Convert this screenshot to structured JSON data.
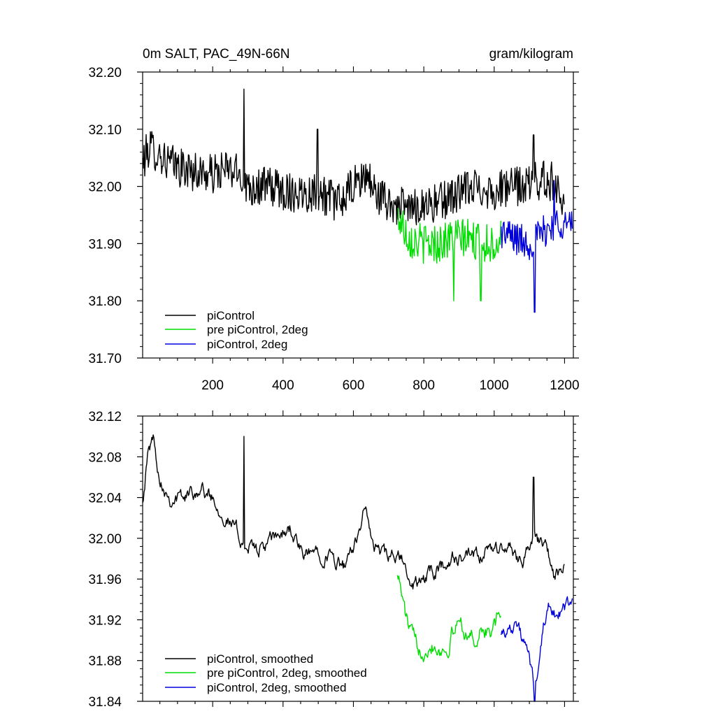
{
  "chart_data": [
    {
      "type": "line",
      "title": "0m SALT, PAC_49N-66N",
      "units": "gram/kilogram",
      "xlim": [
        1,
        1225
      ],
      "ylim": [
        31.7,
        32.2
      ],
      "xticks": [
        200,
        400,
        600,
        800,
        1000,
        1200
      ],
      "xtick_labels": [
        "200",
        "400",
        "600",
        "800",
        "1000",
        "1200"
      ],
      "yticks": [
        31.7,
        31.8,
        31.9,
        32.0,
        32.1,
        32.2
      ],
      "ytick_labels": [
        "31.70",
        "31.80",
        "31.90",
        "32.00",
        "32.10",
        "32.20"
      ],
      "legend_position": "bottom-left",
      "series": [
        {
          "name": "piControl",
          "color": "#000000",
          "x_start": 1,
          "x_end": 1200,
          "anchors": [
            [
              1,
              32.04
            ],
            [
              20,
              32.07
            ],
            [
              40,
              32.06
            ],
            [
              80,
              32.04
            ],
            [
              120,
              32.03
            ],
            [
              200,
              32.02
            ],
            [
              240,
              32.03
            ],
            [
              280,
              32.02
            ],
            [
              300,
              32.0
            ],
            [
              360,
              32.0
            ],
            [
              420,
              31.99
            ],
            [
              500,
              31.99
            ],
            [
              560,
              31.97
            ],
            [
              600,
              32.0
            ],
            [
              640,
              32.02
            ],
            [
              660,
              31.99
            ],
            [
              700,
              31.97
            ],
            [
              760,
              31.96
            ],
            [
              800,
              31.97
            ],
            [
              840,
              31.97
            ],
            [
              900,
              31.99
            ],
            [
              960,
              32.0
            ],
            [
              1000,
              31.99
            ],
            [
              1040,
              32.0
            ],
            [
              1080,
              32.0
            ],
            [
              1120,
              32.01
            ],
            [
              1160,
              32.01
            ],
            [
              1200,
              31.98
            ]
          ],
          "noise": 0.035,
          "spikes": [
            [
              289,
              32.17
            ],
            [
              498,
              32.1
            ],
            [
              1112,
              32.09
            ]
          ]
        },
        {
          "name": "pre piControl, 2deg",
          "color": "#00dd00",
          "x_start": 725,
          "x_end": 1020,
          "anchors": [
            [
              725,
              31.95
            ],
            [
              760,
              31.91
            ],
            [
              800,
              31.9
            ],
            [
              840,
              31.9
            ],
            [
              880,
              31.91
            ],
            [
              920,
              31.91
            ],
            [
              960,
              31.9
            ],
            [
              1000,
              31.9
            ],
            [
              1020,
              31.91
            ]
          ],
          "noise": 0.035,
          "spikes": [
            [
              885,
              31.8
            ],
            [
              962,
              31.8
            ]
          ]
        },
        {
          "name": "piControl, 2deg",
          "color": "#0000dd",
          "x_start": 1020,
          "x_end": 1222,
          "anchors": [
            [
              1020,
              31.92
            ],
            [
              1060,
              31.91
            ],
            [
              1100,
              31.9
            ],
            [
              1140,
              31.92
            ],
            [
              1180,
              31.94
            ],
            [
              1222,
              31.93
            ]
          ],
          "noise": 0.03,
          "spikes": [
            [
              1115,
              31.78
            ],
            [
              1170,
              32.01
            ]
          ]
        }
      ]
    },
    {
      "type": "line",
      "title": "",
      "xlim": [
        1,
        1225
      ],
      "ylim": [
        31.84,
        32.12
      ],
      "xticks": [
        200,
        400,
        600,
        800,
        1000,
        1200
      ],
      "xtick_labels": [],
      "yticks": [
        31.84,
        31.88,
        31.92,
        31.96,
        32.0,
        32.04,
        32.08,
        32.12
      ],
      "ytick_labels": [
        "31.84",
        "31.88",
        "31.92",
        "31.96",
        "32.00",
        "32.04",
        "32.08",
        "32.12"
      ],
      "legend_position": "bottom-left",
      "series": [
        {
          "name": "piControl, smoothed",
          "color": "#000000",
          "x_start": 1,
          "x_end": 1200,
          "anchors": [
            [
              1,
              32.04
            ],
            [
              15,
              32.08
            ],
            [
              30,
              32.1
            ],
            [
              50,
              32.06
            ],
            [
              80,
              32.04
            ],
            [
              120,
              32.04
            ],
            [
              160,
              32.05
            ],
            [
              200,
              32.04
            ],
            [
              240,
              32.02
            ],
            [
              280,
              32.0
            ],
            [
              300,
              31.99
            ],
            [
              340,
              31.99
            ],
            [
              380,
              32.0
            ],
            [
              420,
              32.01
            ],
            [
              460,
              31.98
            ],
            [
              500,
              31.99
            ],
            [
              540,
              31.98
            ],
            [
              580,
              31.97
            ],
            [
              600,
              31.99
            ],
            [
              630,
              32.03
            ],
            [
              660,
              31.99
            ],
            [
              700,
              31.98
            ],
            [
              740,
              31.98
            ],
            [
              760,
              31.95
            ],
            [
              800,
              31.96
            ],
            [
              840,
              31.97
            ],
            [
              880,
              31.98
            ],
            [
              920,
              31.98
            ],
            [
              960,
              31.98
            ],
            [
              1000,
              31.99
            ],
            [
              1040,
              31.99
            ],
            [
              1080,
              31.98
            ],
            [
              1110,
              32.0
            ],
            [
              1150,
              31.99
            ],
            [
              1170,
              31.96
            ],
            [
              1200,
              31.97
            ]
          ],
          "noise": 0.012,
          "spikes": [
            [
              289,
              32.1
            ],
            [
              1112,
              32.06
            ]
          ]
        },
        {
          "name": "pre piControl, 2deg, smoothed",
          "color": "#00dd00",
          "x_start": 725,
          "x_end": 1020,
          "anchors": [
            [
              725,
              31.97
            ],
            [
              750,
              31.92
            ],
            [
              780,
              31.89
            ],
            [
              820,
              31.9
            ],
            [
              860,
              31.89
            ],
            [
              900,
              31.92
            ],
            [
              940,
              31.9
            ],
            [
              970,
              31.91
            ],
            [
              1000,
              31.91
            ],
            [
              1020,
              31.93
            ]
          ],
          "noise": 0.015,
          "spikes": []
        },
        {
          "name": "piControl, 2deg, smoothed",
          "color": "#0000dd",
          "x_start": 1020,
          "x_end": 1222,
          "anchors": [
            [
              1020,
              31.91
            ],
            [
              1040,
              31.91
            ],
            [
              1060,
              31.92
            ],
            [
              1080,
              31.9
            ],
            [
              1100,
              31.88
            ],
            [
              1115,
              31.85
            ],
            [
              1140,
              31.91
            ],
            [
              1160,
              31.94
            ],
            [
              1180,
              31.92
            ],
            [
              1200,
              31.93
            ],
            [
              1222,
              31.94
            ]
          ],
          "noise": 0.012,
          "spikes": [
            [
              1115,
              31.84
            ]
          ]
        }
      ]
    }
  ]
}
